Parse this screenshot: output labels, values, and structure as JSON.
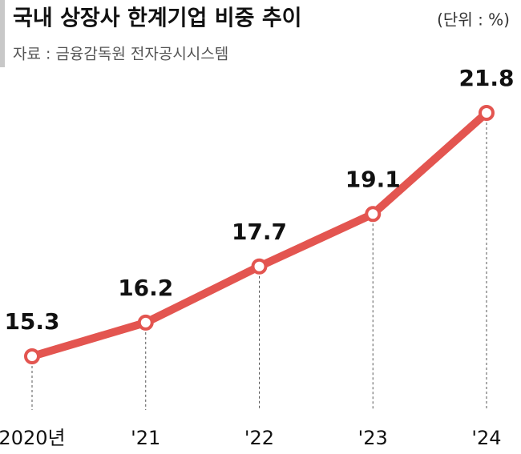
{
  "chart_data": {
    "type": "line",
    "title": "국내 상장사 한계기업 비중 추이",
    "unit": "(단위 : %)",
    "source": "자료 : 금융감독원 전자공시시스템",
    "categories": [
      "2020년",
      "'21",
      "'22",
      "'23",
      "'24"
    ],
    "values": [
      15.3,
      16.2,
      17.7,
      19.1,
      21.8
    ],
    "color": "#e35550"
  }
}
